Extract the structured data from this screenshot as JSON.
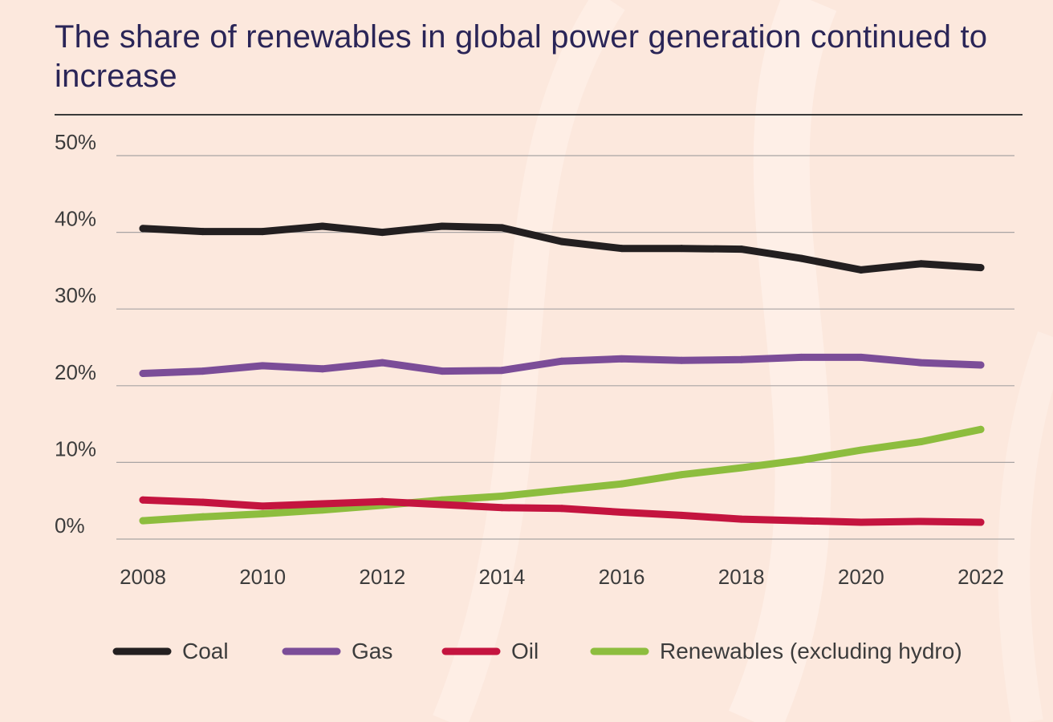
{
  "title": "The share of renewables in global power generation continued to increase",
  "colors": {
    "background": "#fce8dd",
    "title": "#2a2557",
    "grid": "#a8a4a4",
    "text": "#3c3c3c"
  },
  "chart_data": {
    "type": "line",
    "title": "The share of renewables in global power generation continued to increase",
    "xlabel": "",
    "ylabel": "",
    "ylim": [
      0,
      50
    ],
    "xlim": [
      2008,
      2022
    ],
    "y_ticks": [
      0,
      10,
      20,
      30,
      40,
      50
    ],
    "y_tick_labels": [
      "0%",
      "10%",
      "20%",
      "30%",
      "40%",
      "50%"
    ],
    "x_ticks": [
      2008,
      2010,
      2012,
      2014,
      2016,
      2018,
      2020,
      2022
    ],
    "x_tick_labels": [
      "2008",
      "2010",
      "2012",
      "2014",
      "2016",
      "2018",
      "2020",
      "2022"
    ],
    "grid": "horizontal",
    "legend_position": "bottom",
    "x": [
      2008,
      2009,
      2010,
      2011,
      2012,
      2013,
      2014,
      2015,
      2016,
      2017,
      2018,
      2019,
      2020,
      2021,
      2022
    ],
    "series": [
      {
        "name": "Coal",
        "color": "#231f20",
        "values": [
          40.5,
          40.1,
          40.1,
          40.8,
          40.0,
          40.8,
          40.6,
          38.8,
          37.9,
          37.9,
          37.8,
          36.6,
          35.1,
          35.9,
          35.4
        ]
      },
      {
        "name": "Gas",
        "color": "#7b4d98",
        "values": [
          21.6,
          21.9,
          22.6,
          22.2,
          23.0,
          21.9,
          22.0,
          23.2,
          23.5,
          23.3,
          23.4,
          23.7,
          23.7,
          23.0,
          22.7
        ]
      },
      {
        "name": "Oil",
        "color": "#c4143f",
        "values": [
          5.1,
          4.8,
          4.3,
          4.6,
          4.9,
          4.5,
          4.1,
          4.0,
          3.5,
          3.1,
          2.6,
          2.4,
          2.2,
          2.3,
          2.2
        ]
      },
      {
        "name": "Renewables (excluding hydro)",
        "color": "#8dbd3e",
        "values": [
          2.4,
          2.9,
          3.3,
          3.8,
          4.4,
          5.1,
          5.6,
          6.4,
          7.2,
          8.4,
          9.3,
          10.3,
          11.6,
          12.7,
          14.3
        ]
      }
    ]
  }
}
